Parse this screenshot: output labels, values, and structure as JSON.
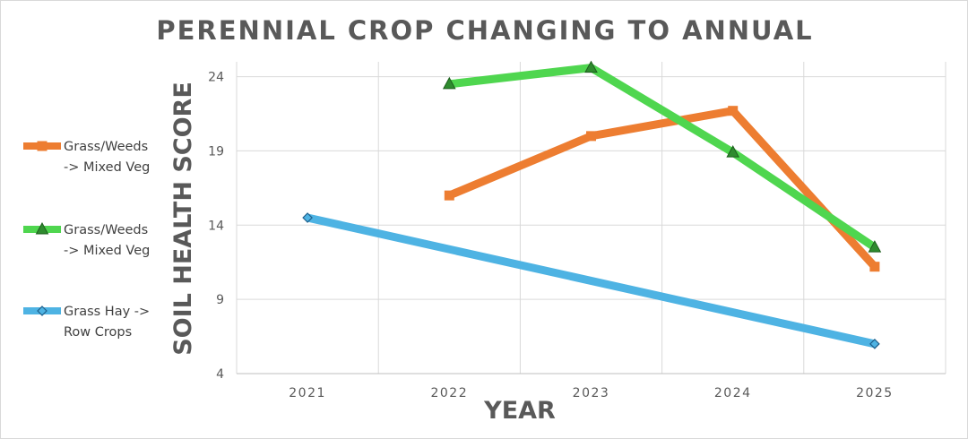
{
  "chart_data": {
    "type": "line",
    "title": "PERENNIAL CROP CHANGING TO ANNUAL",
    "xlabel": "YEAR",
    "ylabel": "SOIL HEALTH SCORE",
    "categories": [
      "2021",
      "2022",
      "2023",
      "2024",
      "2025"
    ],
    "ylim": [
      4,
      25
    ],
    "yticks": [
      4,
      9,
      14,
      19,
      24
    ],
    "grid": true,
    "legend_position": "left",
    "series": [
      {
        "name": "Grass/Weeds -> Mixed Veg",
        "legend_lines": [
          "Grass/Weeds",
          "-> Mixed Veg"
        ],
        "color": "#ed7d31",
        "marker": "square",
        "values": [
          null,
          16,
          20,
          21.7,
          11.2
        ]
      },
      {
        "name": "Grass/Weeds -> Mixed Veg",
        "legend_lines": [
          "Grass/Weeds",
          "-> Mixed Veg"
        ],
        "color": "#4fd64f",
        "marker": "triangle",
        "values": [
          null,
          23.5,
          24.6,
          18.9,
          12.5
        ]
      },
      {
        "name": "Grass Hay -> Row Crops",
        "legend_lines": [
          "Grass Hay ->",
          "Row Crops"
        ],
        "color": "#4eb3e3",
        "marker": "diamond",
        "values": [
          14.5,
          null,
          null,
          null,
          6
        ]
      }
    ]
  }
}
